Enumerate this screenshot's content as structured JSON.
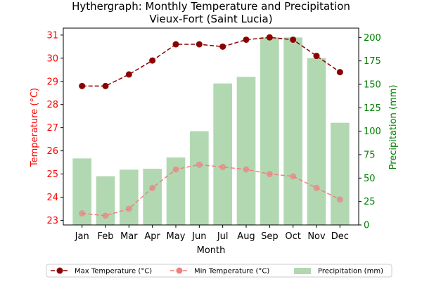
{
  "chart_data": {
    "type": "bar+line",
    "title": "Hythergraph: Monthly Temperature and Precipitation",
    "subtitle": "Vieux-Fort (Saint Lucia)",
    "xlabel": "Month",
    "ylabel_left": "Temperature (°C)",
    "ylabel_right": "Precipitation (mm)",
    "categories": [
      "Jan",
      "Feb",
      "Mar",
      "Apr",
      "May",
      "Jun",
      "Jul",
      "Aug",
      "Sep",
      "Oct",
      "Nov",
      "Dec"
    ],
    "ylim_left": [
      22.8,
      31.3
    ],
    "yticks_left": [
      "23",
      "24",
      "25",
      "26",
      "27",
      "28",
      "29",
      "30",
      "31"
    ],
    "ylim_right": [
      0,
      210
    ],
    "yticks_right": [
      "0",
      "25",
      "50",
      "75",
      "100",
      "125",
      "150",
      "175",
      "200"
    ],
    "series": [
      {
        "name": "Max Temperature (°C)",
        "type": "line",
        "axis": "left",
        "color": "#8b0000",
        "values": [
          28.8,
          28.8,
          29.3,
          29.9,
          30.6,
          30.6,
          30.5,
          30.8,
          30.9,
          30.8,
          30.1,
          29.4
        ]
      },
      {
        "name": "Min Temperature (°C)",
        "type": "line",
        "axis": "left",
        "color": "#f08080",
        "values": [
          23.3,
          23.2,
          23.5,
          24.4,
          25.2,
          25.4,
          25.3,
          25.2,
          25.0,
          24.9,
          24.4,
          23.9
        ]
      },
      {
        "name": "Precipitation (mm)",
        "type": "bar",
        "axis": "right",
        "color": "#b2d8b2",
        "values": [
          71,
          52,
          59,
          60,
          72,
          100,
          151,
          158,
          200,
          200,
          178,
          109
        ]
      }
    ],
    "legend_placement": "bottom-center",
    "grid": false,
    "colors": {
      "left_axis": "#ff0000",
      "right_axis": "#008000",
      "max_line": "#8b0000",
      "min_line": "#f08080",
      "bars": "#b2d8b2"
    }
  }
}
